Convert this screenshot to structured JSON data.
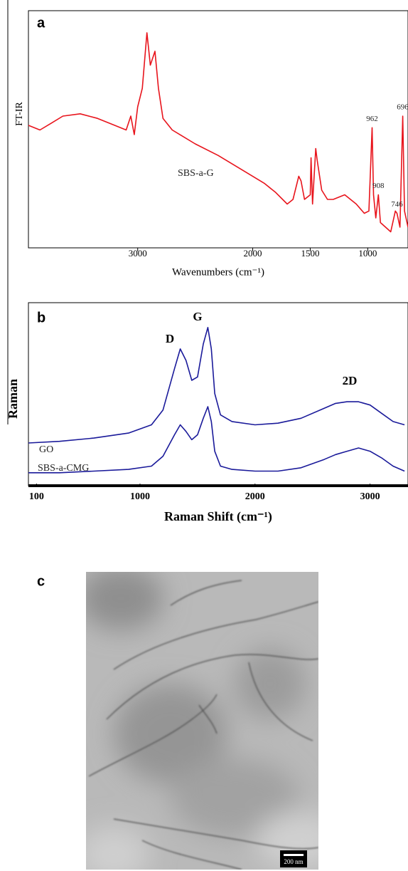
{
  "chart_data": [
    {
      "type": "line",
      "panel_label": "a",
      "x_label": "Wavenumbers (cm⁻¹)",
      "y_label": "FT-IR",
      "xlim": [
        3950,
        650
      ],
      "ylim": [
        0,
        100
      ],
      "xticks": [
        3000,
        2000,
        1500,
        1000
      ],
      "x": [
        3950,
        3850,
        3750,
        3650,
        3500,
        3350,
        3200,
        3100,
        3060,
        3030,
        3000,
        2960,
        2920,
        2890,
        2850,
        2820,
        2780,
        2700,
        2500,
        2300,
        2100,
        1900,
        1800,
        1700,
        1650,
        1600,
        1580,
        1550,
        1500,
        1493,
        1480,
        1452,
        1440,
        1400,
        1350,
        1300,
        1200,
        1100,
        1030,
        990,
        962,
        950,
        930,
        908,
        890,
        800,
        760,
        746,
        720,
        696,
        680,
        650
      ],
      "series": [
        {
          "name": "SBS-a-G",
          "color": "#e8141c",
          "values": [
            52,
            50,
            53,
            56,
            57,
            55,
            52,
            50,
            56,
            48,
            60,
            68,
            92,
            78,
            84,
            68,
            55,
            50,
            44,
            39,
            33,
            27,
            23,
            18,
            20,
            30,
            28,
            20,
            22,
            38,
            18,
            42,
            37,
            24,
            20,
            20,
            22,
            18,
            14,
            15,
            51,
            22,
            12,
            22,
            10,
            6,
            15,
            14,
            8,
            56,
            15,
            8
          ]
        }
      ],
      "peak_labels": [
        962,
        908,
        746,
        696
      ]
    },
    {
      "type": "line",
      "panel_label": "b",
      "x_label": "Raman Shift (cm⁻¹)",
      "y_label": "Raman",
      "xlim": [
        30,
        3330
      ],
      "ylim": [
        0,
        110
      ],
      "xticks": [
        100,
        1000,
        2000,
        3000
      ],
      "x": [
        30,
        300,
        600,
        900,
        1100,
        1200,
        1300,
        1350,
        1400,
        1450,
        1500,
        1550,
        1590,
        1620,
        1650,
        1700,
        1800,
        2000,
        2200,
        2400,
        2600,
        2700,
        2800,
        2900,
        3000,
        3100,
        3200,
        3300
      ],
      "series": [
        {
          "name": "GO",
          "color": "#1a1a9a",
          "values": [
            25,
            26,
            28,
            31,
            36,
            45,
            70,
            82,
            75,
            63,
            65,
            85,
            95,
            82,
            55,
            42,
            38,
            36,
            37,
            40,
            46,
            49,
            50,
            50,
            48,
            43,
            38,
            36
          ]
        },
        {
          "name": "SBS-a-CMG",
          "color": "#1a1a9a",
          "values": [
            7,
            7,
            8,
            9,
            11,
            17,
            30,
            36,
            32,
            27,
            30,
            40,
            47,
            38,
            20,
            11,
            9,
            8,
            8,
            10,
            15,
            18,
            20,
            22,
            20,
            16,
            11,
            8
          ]
        }
      ],
      "annotations": [
        "D",
        "G",
        "2D"
      ]
    }
  ],
  "image": {
    "panel_label": "c",
    "scale_bar": "200 nm"
  }
}
